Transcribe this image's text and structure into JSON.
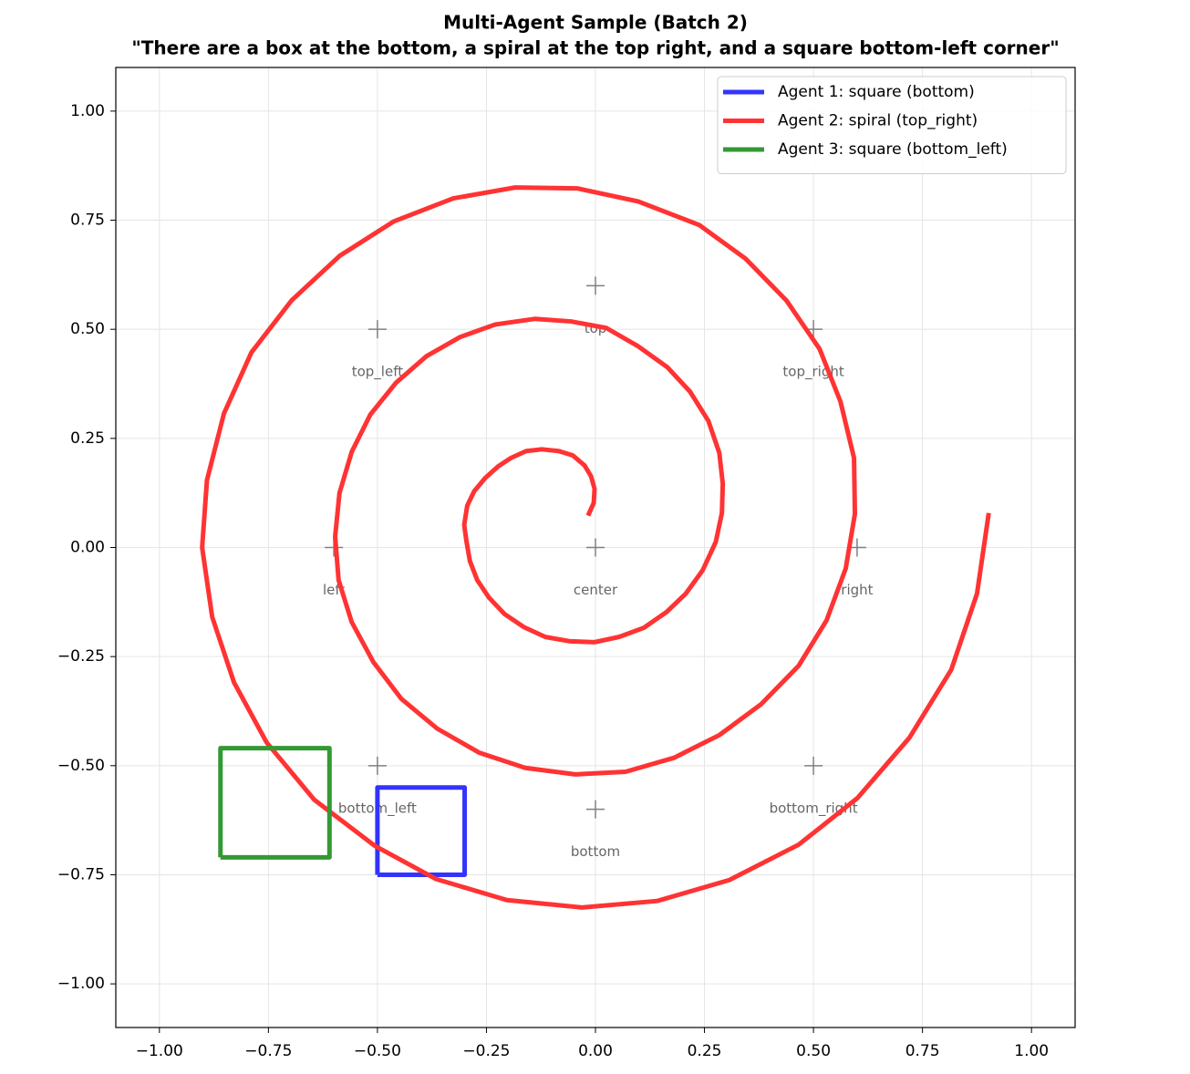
{
  "chart_data": {
    "type": "line",
    "title": "Multi-Agent Sample (Batch 2)",
    "subtitle": "\"There are a box at the bottom, a spiral at the top right, and a square bottom-left corner\"",
    "xlim": [
      -1.1,
      1.1
    ],
    "ylim": [
      -1.1,
      1.1
    ],
    "xticks": [
      {
        "value": -1,
        "label": "−1.00"
      },
      {
        "value": -0.75,
        "label": "−0.75"
      },
      {
        "value": -0.5,
        "label": "−0.50"
      },
      {
        "value": -0.25,
        "label": "−0.25"
      },
      {
        "value": 0,
        "label": "0.00"
      },
      {
        "value": 0.25,
        "label": "0.25"
      },
      {
        "value": 0.5,
        "label": "0.50"
      },
      {
        "value": 0.75,
        "label": "0.75"
      },
      {
        "value": 1,
        "label": "1.00"
      }
    ],
    "yticks": [
      {
        "value": -1,
        "label": "−1.00"
      },
      {
        "value": -0.75,
        "label": "−0.75"
      },
      {
        "value": -0.5,
        "label": "−0.50"
      },
      {
        "value": -0.25,
        "label": "−0.25"
      },
      {
        "value": 0,
        "label": "0.00"
      },
      {
        "value": 0.25,
        "label": "0.25"
      },
      {
        "value": 0.5,
        "label": "0.50"
      },
      {
        "value": 0.75,
        "label": "0.75"
      },
      {
        "value": 1,
        "label": "1.00"
      }
    ],
    "grid": true,
    "legend": "upper right",
    "series": [
      {
        "name": "Agent 1: square (bottom)",
        "color": "#3333ff",
        "x": [
          -0.5,
          -0.3,
          -0.3,
          -0.5,
          -0.5
        ],
        "y": [
          -0.75,
          -0.75,
          -0.55,
          -0.55,
          -0.75
        ]
      },
      {
        "name": "Agent 2: spiral (top_right)",
        "color": "#ff3333",
        "x": [
          -0.017,
          -0.004,
          -0.002,
          -0.01,
          -0.025,
          -0.052,
          -0.084,
          -0.123,
          -0.159,
          -0.194,
          -0.223,
          -0.253,
          -0.278,
          -0.294,
          -0.301,
          -0.296,
          -0.288,
          -0.271,
          -0.244,
          -0.209,
          -0.165,
          -0.115,
          -0.058,
          -0.002,
          0.054,
          0.111,
          0.163,
          0.207,
          0.246,
          0.276,
          0.29,
          0.292,
          0.284,
          0.259,
          0.217,
          0.165,
          0.098,
          0.025,
          -0.056,
          -0.138,
          -0.23,
          -0.311,
          -0.388,
          -0.457,
          -0.516,
          -0.559,
          -0.587,
          -0.597,
          -0.589,
          -0.559,
          -0.509,
          -0.445,
          -0.363,
          -0.267,
          -0.161,
          -0.046,
          0.069,
          0.18,
          0.284,
          0.38,
          0.466,
          0.53,
          0.574,
          0.595,
          0.593,
          0.562,
          0.514,
          0.438,
          0.344,
          0.238,
          0.098,
          -0.042,
          -0.184,
          -0.326,
          -0.463,
          -0.587,
          -0.697,
          -0.789,
          -0.852,
          -0.891,
          -0.902,
          -0.879,
          -0.829,
          -0.754,
          -0.645,
          -0.507,
          -0.365,
          -0.203,
          -0.031,
          0.142,
          0.307,
          0.466,
          0.601,
          0.72,
          0.816,
          0.875,
          0.902
        ],
        "y": [
          0.073,
          0.102,
          0.134,
          0.163,
          0.188,
          0.211,
          0.221,
          0.225,
          0.221,
          0.205,
          0.186,
          0.159,
          0.129,
          0.096,
          0.052,
          0.015,
          -0.031,
          -0.075,
          -0.115,
          -0.152,
          -0.182,
          -0.205,
          -0.215,
          -0.217,
          -0.205,
          -0.184,
          -0.148,
          -0.106,
          -0.052,
          0.013,
          0.079,
          0.146,
          0.217,
          0.29,
          0.357,
          0.413,
          0.461,
          0.503,
          0.518,
          0.524,
          0.511,
          0.482,
          0.438,
          0.378,
          0.305,
          0.219,
          0.125,
          0.025,
          -0.075,
          -0.171,
          -0.263,
          -0.347,
          -0.415,
          -0.47,
          -0.505,
          -0.52,
          -0.514,
          -0.482,
          -0.43,
          -0.359,
          -0.271,
          -0.167,
          -0.048,
          0.077,
          0.205,
          0.334,
          0.455,
          0.566,
          0.662,
          0.739,
          0.793,
          0.823,
          0.825,
          0.8,
          0.747,
          0.668,
          0.566,
          0.447,
          0.307,
          0.154,
          0,
          -0.159,
          -0.309,
          -0.447,
          -0.578,
          -0.683,
          -0.76,
          -0.808,
          -0.825,
          -0.81,
          -0.762,
          -0.681,
          -0.574,
          -0.436,
          -0.28,
          -0.106,
          0.079
        ]
      },
      {
        "name": "Agent 3: square (bottom_left)",
        "color": "#339933",
        "x": [
          -0.86,
          -0.61,
          -0.61,
          -0.86,
          -0.86
        ],
        "y": [
          -0.71,
          -0.71,
          -0.46,
          -0.46,
          -0.71
        ]
      }
    ],
    "markers": {
      "color": "#808080",
      "x": [
        -0.5,
        0,
        0.5,
        -0.6,
        0,
        0.6,
        -0.5,
        0,
        0.5
      ],
      "y": [
        0.5,
        0.6,
        0.5,
        0,
        0,
        0,
        -0.5,
        -0.6,
        -0.5
      ],
      "labels": [
        "top_left",
        "top",
        "top_right",
        "left",
        "center",
        "right",
        "bottom_left",
        "bottom",
        "bottom_right"
      ]
    }
  }
}
